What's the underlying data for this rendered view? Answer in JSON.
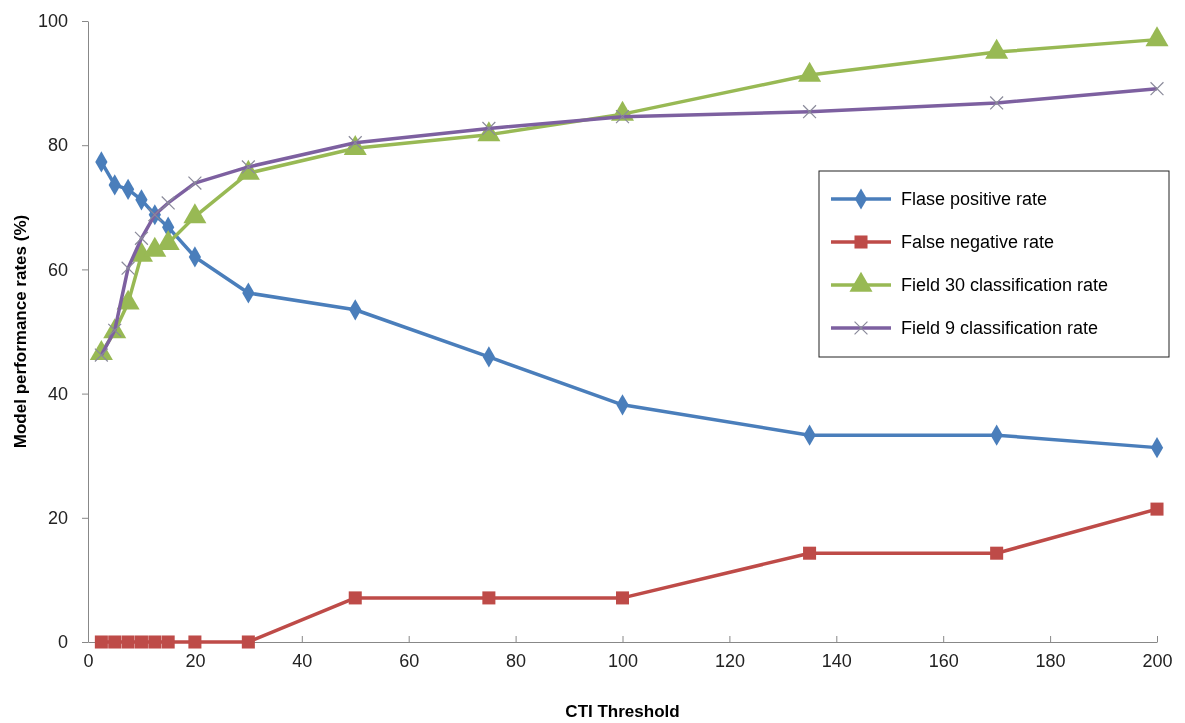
{
  "chart_data": {
    "type": "line",
    "xlabel": "CTI Threshold",
    "ylabel": "Model performance rates (%)",
    "x": [
      2.5,
      5,
      7.5,
      10,
      12.5,
      15,
      20,
      30,
      50,
      75,
      100,
      135,
      170,
      200
    ],
    "xlim": [
      0,
      200
    ],
    "xticks": [
      0,
      20,
      40,
      60,
      80,
      100,
      120,
      140,
      160,
      180,
      200
    ],
    "ylim": [
      0,
      100
    ],
    "yticks": [
      0,
      20,
      40,
      60,
      80,
      100
    ],
    "grid": false,
    "legend": "right",
    "series": [
      {
        "name": "Flase positive rate",
        "color": "#4a7ebb",
        "marker": "diamond",
        "values": [
          77.3,
          73.6,
          72.9,
          71.2,
          68.8,
          66.8,
          62.0,
          56.2,
          53.5,
          45.9,
          38.2,
          33.3,
          33.3,
          31.3
        ]
      },
      {
        "name": "False negative rate",
        "color": "#be4b48",
        "marker": "square",
        "values": [
          0,
          0,
          0,
          0,
          0,
          0,
          0,
          0,
          7.1,
          7.1,
          7.1,
          14.3,
          14.3,
          21.4
        ]
      },
      {
        "name": "Field 30 classification rate",
        "color": "#98b954",
        "marker": "triangle",
        "values": [
          46.5,
          50.0,
          54.6,
          62.3,
          63.1,
          64.2,
          68.5,
          75.5,
          79.5,
          81.7,
          85.0,
          91.3,
          95.0,
          97.0
        ]
      },
      {
        "name": "Field 9 classification rate",
        "color": "#7d60a0",
        "marker": "cross",
        "values": [
          46.2,
          50.2,
          60.2,
          65.0,
          68.8,
          70.7,
          73.9,
          76.5,
          80.4,
          82.7,
          84.6,
          85.4,
          86.8,
          89.1
        ]
      }
    ]
  }
}
